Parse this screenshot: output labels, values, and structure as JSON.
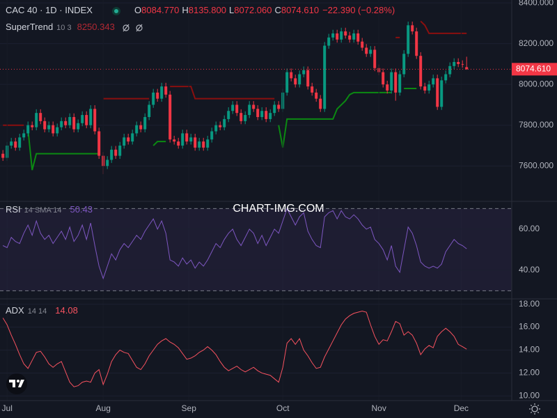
{
  "watermark": "CHART-IMG.COM",
  "chart_data": [
    {
      "type": "candlestick",
      "title": "CAC 40 · 1D · INDEX",
      "ohlc_keys": [
        "O",
        "H",
        "L",
        "C"
      ],
      "ohlc_labels": [
        "8084.770",
        "8135.800",
        "8072.060",
        "8074.610"
      ],
      "change_label": "−22.390 (−0.28%)",
      "last_price_label": "8074.610",
      "up_color": "#089981",
      "down_color": "#f23645",
      "xlim": [
        -0.7,
        121.8
      ],
      "xticks": [
        {
          "value": 1,
          "label": "Jul"
        },
        {
          "value": 24,
          "label": "Aug"
        },
        {
          "value": 44.5,
          "label": "Sep"
        },
        {
          "value": 67,
          "label": "Oct"
        },
        {
          "value": 90,
          "label": "Nov"
        },
        {
          "value": 109.7,
          "label": "Dec"
        }
      ],
      "ylim": [
        7430,
        8414
      ],
      "yticks": [
        {
          "value": 7600,
          "label": "7600.000"
        },
        {
          "value": 7800,
          "label": "7800.000"
        },
        {
          "value": 8000,
          "label": "8000.000"
        },
        {
          "value": 8200,
          "label": "8200.000"
        },
        {
          "value": 8400,
          "label": "8400.000"
        }
      ],
      "open": [
        7660,
        7640,
        7700,
        7720,
        7690,
        7740,
        7760,
        7800,
        7790,
        7860,
        7820,
        7780,
        7800,
        7760,
        7790,
        7820,
        7800,
        7840,
        7780,
        7810,
        7850,
        7800,
        7880,
        7770,
        7650,
        7600,
        7630,
        7680,
        7650,
        7700,
        7740,
        7720,
        7760,
        7800,
        7780,
        7840,
        7900,
        7960,
        7930,
        7990,
        7950,
        7730,
        7720,
        7700,
        7760,
        7720,
        7740,
        7690,
        7720,
        7690,
        7730,
        7770,
        7800,
        7790,
        7830,
        7870,
        7900,
        7860,
        7820,
        7850,
        7900,
        7880,
        7840,
        7870,
        7830,
        7860,
        7900,
        7880,
        7960,
        8060,
        8030,
        8000,
        8050,
        8070,
        7990,
        7960,
        7930,
        7880,
        8190,
        8230,
        8250,
        8220,
        8260,
        8240,
        8220,
        8250,
        8210,
        8180,
        8150,
        8170,
        8080,
        8060,
        8000,
        7970,
        8060,
        7960,
        8050,
        8150,
        8290,
        8260,
        8140,
        7990,
        7970,
        8000,
        8030,
        7890,
        8020,
        8050,
        8090,
        8110,
        8100,
        8084.77
      ],
      "high": [
        7678,
        7718,
        7738,
        7738,
        7758,
        7778,
        7818,
        7818,
        7878,
        7878,
        7838,
        7818,
        7818,
        7808,
        7838,
        7838,
        7858,
        7858,
        7828,
        7868,
        7868,
        7898,
        7898,
        7788,
        7668,
        7648,
        7698,
        7698,
        7718,
        7758,
        7758,
        7778,
        7818,
        7818,
        7858,
        7918,
        7978,
        7978,
        8008,
        8008,
        7968,
        7748,
        7738,
        7778,
        7778,
        7758,
        7758,
        7738,
        7738,
        7748,
        7788,
        7818,
        7818,
        7848,
        7888,
        7918,
        7918,
        7878,
        7868,
        7918,
        7918,
        7898,
        7888,
        7888,
        7878,
        7918,
        7918,
        7978,
        8078,
        8078,
        8048,
        8068,
        8088,
        8088,
        8008,
        7978,
        7948,
        8208,
        8248,
        8268,
        8268,
        8278,
        8278,
        8258,
        8268,
        8268,
        8228,
        8198,
        8188,
        8188,
        8098,
        8078,
        8018,
        8078,
        8078,
        8068,
        8168,
        8308,
        8308,
        8278,
        8158,
        8008,
        8018,
        8048,
        8048,
        8038,
        8068,
        8108,
        8128,
        8128,
        8118,
        8135.8
      ],
      "low": [
        7625,
        7625,
        7685,
        7675,
        7675,
        7725,
        7745,
        7775,
        7775,
        7805,
        7765,
        7765,
        7745,
        7745,
        7775,
        7785,
        7785,
        7765,
        7765,
        7795,
        7785,
        7785,
        7755,
        7635,
        7560,
        7585,
        7615,
        7635,
        7635,
        7685,
        7705,
        7705,
        7745,
        7765,
        7765,
        7825,
        7885,
        7915,
        7915,
        7935,
        7715,
        7705,
        7685,
        7685,
        7705,
        7705,
        7675,
        7675,
        7675,
        7675,
        7715,
        7755,
        7775,
        7775,
        7815,
        7855,
        7845,
        7805,
        7805,
        7835,
        7865,
        7825,
        7825,
        7815,
        7815,
        7845,
        7865,
        7865,
        7945,
        8015,
        7985,
        7985,
        8035,
        7975,
        7945,
        7915,
        7865,
        7865,
        8175,
        8215,
        8205,
        8205,
        8225,
        8205,
        8205,
        8195,
        8165,
        8135,
        8135,
        8065,
        8045,
        7985,
        7955,
        7955,
        7920,
        7945,
        8035,
        8135,
        8245,
        8125,
        7975,
        7955,
        7955,
        7985,
        7875,
        7875,
        8005,
        8035,
        8075,
        8085,
        8082,
        8072.06
      ],
      "close": [
        7640,
        7700,
        7720,
        7690,
        7740,
        7760,
        7800,
        7790,
        7860,
        7820,
        7780,
        7800,
        7760,
        7790,
        7820,
        7800,
        7840,
        7780,
        7810,
        7850,
        7800,
        7880,
        7770,
        7650,
        7600,
        7630,
        7680,
        7650,
        7700,
        7740,
        7720,
        7760,
        7800,
        7780,
        7840,
        7900,
        7960,
        7930,
        7990,
        7950,
        7730,
        7720,
        7700,
        7760,
        7720,
        7740,
        7690,
        7720,
        7690,
        7730,
        7770,
        7800,
        7790,
        7830,
        7870,
        7900,
        7860,
        7820,
        7850,
        7900,
        7880,
        7840,
        7870,
        7830,
        7860,
        7900,
        7880,
        7960,
        8060,
        8030,
        8000,
        8050,
        8070,
        7990,
        7960,
        7930,
        7880,
        8190,
        8230,
        8250,
        8220,
        8260,
        8240,
        8220,
        8250,
        8210,
        8180,
        8150,
        8170,
        8080,
        8060,
        8000,
        7970,
        8060,
        7960,
        8050,
        8150,
        8290,
        8260,
        8140,
        7990,
        7970,
        8000,
        8030,
        7890,
        8020,
        8050,
        8090,
        8110,
        8100,
        8097,
        8074.61
      ],
      "supertrend": {
        "label": "SuperTrend",
        "params": "10 3",
        "up_color": "#0b8a12",
        "down_color": "#8a0f0f",
        "up": [
          null,
          null,
          null,
          null,
          null,
          null,
          7780,
          7580,
          7660,
          7660,
          7660,
          7660,
          7660,
          7660,
          7660,
          7660,
          7660,
          7660,
          7660,
          7660,
          7660,
          7660,
          7660,
          7660,
          null,
          null,
          null,
          null,
          null,
          null,
          null,
          null,
          null,
          null,
          null,
          null,
          7700,
          7720,
          7720,
          7720,
          null,
          null,
          null,
          null,
          null,
          null,
          null,
          null,
          null,
          null,
          null,
          null,
          null,
          null,
          null,
          null,
          null,
          null,
          null,
          null,
          null,
          null,
          null,
          null,
          null,
          null,
          7800,
          7690,
          7830,
          7830,
          7830,
          7830,
          7830,
          7830,
          7830,
          7830,
          7830,
          7830,
          7830,
          7830,
          7880,
          7900,
          7920,
          7950,
          7960,
          7960,
          7960,
          7960,
          7960,
          7960,
          7960,
          7960,
          7960,
          7960,
          null,
          null,
          7980,
          7980,
          7980,
          7980,
          null,
          null,
          null,
          null,
          null,
          null,
          null,
          null,
          null,
          null,
          null,
          null
        ],
        "down": [
          7800,
          7800,
          7800,
          7800,
          7800,
          7800,
          null,
          null,
          null,
          null,
          null,
          null,
          null,
          null,
          null,
          null,
          null,
          null,
          null,
          null,
          null,
          null,
          null,
          null,
          7930,
          7930,
          7930,
          7930,
          7930,
          7930,
          7930,
          7930,
          7930,
          7930,
          7930,
          7930,
          null,
          null,
          null,
          null,
          7990,
          7990,
          7990,
          7990,
          7990,
          7990,
          7930,
          7930,
          7930,
          7930,
          7930,
          7930,
          7930,
          7930,
          7930,
          7930,
          7930,
          7930,
          7930,
          7930,
          7930,
          7930,
          7930,
          7930,
          7930,
          7930,
          null,
          null,
          null,
          null,
          null,
          null,
          null,
          null,
          null,
          null,
          null,
          null,
          null,
          null,
          null,
          null,
          null,
          null,
          null,
          null,
          null,
          null,
          null,
          null,
          null,
          null,
          null,
          null,
          8230,
          8230,
          null,
          null,
          null,
          null,
          8310,
          8290,
          8250.343,
          8250.343,
          8250.343,
          8250.343,
          8250.343,
          8250.343,
          8250.343,
          8250.343,
          8250.343,
          8250.343
        ]
      }
    },
    {
      "type": "line",
      "label": "RSI",
      "params": "14 SMA 14",
      "color": "#7e57c2",
      "ylim": [
        26.4,
        73.2
      ],
      "yticks": [
        {
          "value": 40,
          "label": "40.00"
        },
        {
          "value": 60,
          "label": "60.00"
        }
      ],
      "band": [
        30,
        70
      ],
      "values": [
        52,
        51,
        56,
        54,
        53,
        58,
        62,
        57,
        64,
        58,
        55,
        57,
        53,
        56,
        59,
        55,
        61,
        54,
        57,
        62,
        55,
        63,
        52,
        42,
        36,
        42,
        48,
        45,
        50,
        53,
        51,
        54,
        57,
        55,
        59,
        62,
        65,
        60,
        64,
        58,
        45,
        44,
        42,
        46,
        43,
        45,
        41,
        44,
        42,
        45,
        49,
        53,
        51,
        55,
        58,
        60,
        55,
        52,
        56,
        60,
        58,
        53,
        57,
        52,
        56,
        60,
        58,
        64,
        70,
        66,
        62,
        66,
        68,
        59,
        55,
        52,
        51,
        66,
        68,
        69,
        65,
        69,
        66,
        65,
        67,
        65,
        62,
        60,
        61,
        55,
        53,
        50,
        45,
        52,
        42,
        39,
        50,
        61,
        58,
        52,
        44,
        42,
        41,
        42,
        41,
        43,
        49,
        52,
        55,
        53,
        52,
        50.43
      ]
    },
    {
      "type": "line",
      "label": "ADX",
      "params": "14 14",
      "color": "#f7525f",
      "ylim": [
        9.6,
        18.4
      ],
      "yticks": [
        {
          "value": 10,
          "label": "10.00"
        },
        {
          "value": 12,
          "label": "12.00"
        },
        {
          "value": 14,
          "label": "14.00"
        },
        {
          "value": 16,
          "label": "16.00"
        },
        {
          "value": 18,
          "label": "18.00"
        }
      ],
      "values": [
        16.8,
        16.2,
        15.3,
        14.5,
        13.6,
        12.8,
        12.4,
        13.1,
        13.8,
        13.9,
        13.4,
        12.8,
        12.5,
        12.8,
        13.0,
        12.1,
        11.2,
        10.8,
        10.9,
        11.2,
        11.3,
        11.2,
        12.0,
        12.3,
        11.0,
        11.9,
        13.0,
        13.6,
        14.0,
        13.8,
        13.7,
        13.1,
        12.5,
        12.3,
        12.8,
        13.5,
        14.0,
        14.5,
        14.8,
        15.0,
        14.7,
        14.5,
        14.2,
        13.7,
        13.2,
        13.3,
        13.5,
        13.8,
        14.0,
        14.3,
        14.0,
        13.6,
        13.0,
        12.5,
        12.2,
        12.4,
        12.6,
        12.3,
        12.1,
        12.3,
        12.5,
        12.2,
        12.0,
        11.9,
        11.8,
        11.5,
        11.2,
        12.5,
        14.6,
        15.0,
        14.5,
        15.0,
        14.0,
        13.5,
        12.9,
        12.4,
        12.5,
        13.4,
        14.1,
        14.8,
        15.5,
        16.2,
        16.7,
        17.0,
        17.2,
        17.3,
        17.4,
        17.3,
        16.2,
        15.2,
        14.5,
        14.9,
        14.8,
        15.6,
        16.5,
        16.3,
        15.3,
        15.6,
        15.3,
        14.6,
        13.6,
        14.1,
        14.4,
        14.2,
        15.2,
        15.6,
        15.9,
        15.6,
        15.2,
        14.5,
        14.3,
        14.08
      ]
    }
  ]
}
